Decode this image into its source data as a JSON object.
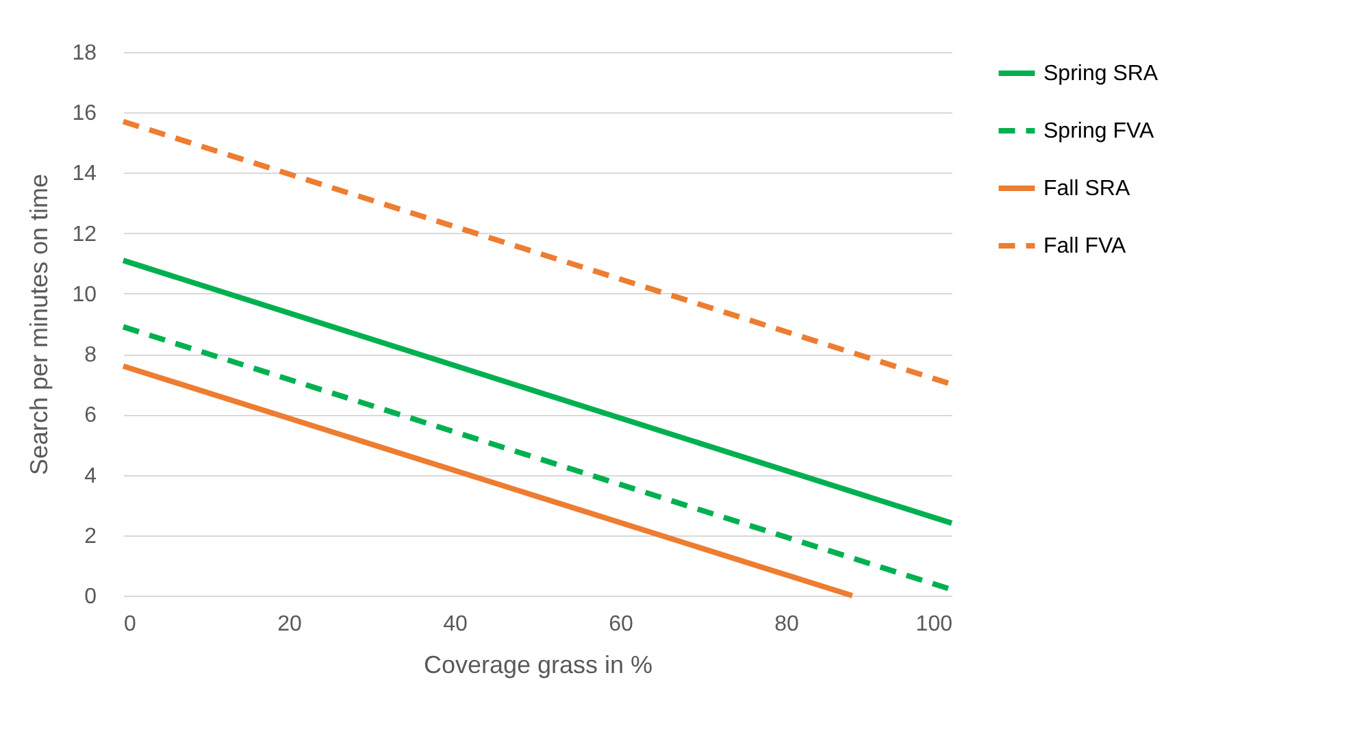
{
  "chart_data": {
    "type": "line",
    "xlabel": "Coverage grass in %",
    "ylabel": "Search per minutes on time",
    "xlim": [
      0,
      100
    ],
    "xticks": [
      0,
      20,
      40,
      60,
      80,
      100
    ],
    "ylim": [
      0,
      18
    ],
    "yticks": [
      0,
      2,
      4,
      6,
      8,
      10,
      12,
      14,
      16,
      18
    ],
    "grid": "y",
    "legend": "right",
    "marker": "none",
    "series": [
      {
        "name": "Spring SRA",
        "color": "#00b050",
        "line_style": "solid",
        "x": [
          0,
          100
        ],
        "values": [
          11.1,
          2.4
        ]
      },
      {
        "name": "Spring FVA",
        "color": "#00b050",
        "line_style": "dashed",
        "x": [
          0,
          100
        ],
        "values": [
          8.9,
          0.2
        ]
      },
      {
        "name": "Fall SRA",
        "color": "#ed7d31",
        "line_style": "solid",
        "x": [
          0,
          88
        ],
        "values": [
          7.6,
          0
        ]
      },
      {
        "name": "Fall FVA",
        "color": "#ed7d31",
        "line_style": "dashed",
        "x": [
          0,
          100
        ],
        "values": [
          15.7,
          7.0
        ]
      }
    ]
  }
}
